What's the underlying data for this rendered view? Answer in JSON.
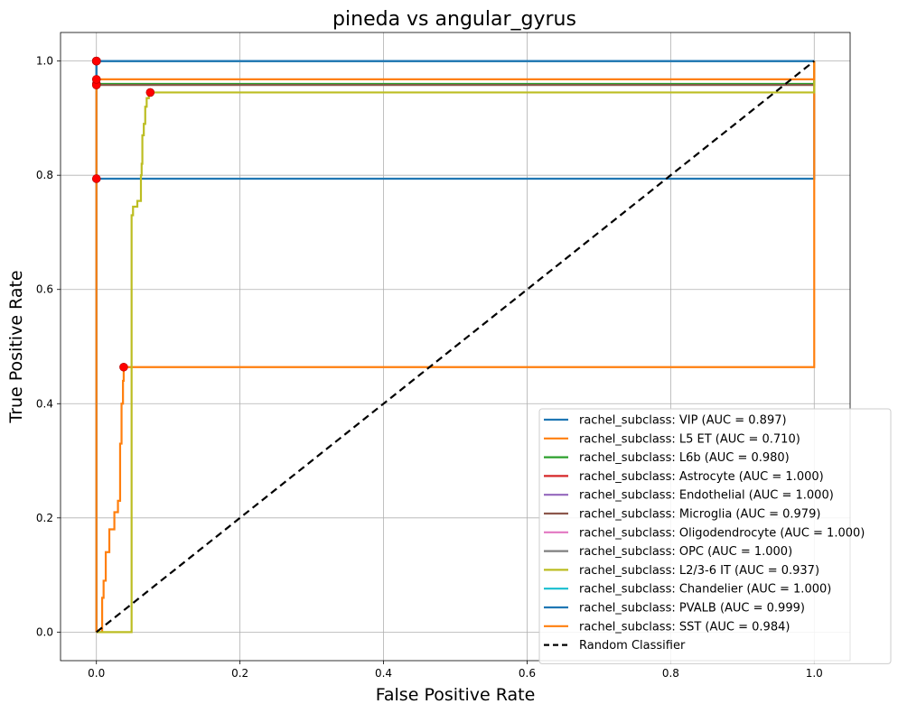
{
  "chart_data": {
    "type": "line",
    "title": "pineda vs angular_gyrus",
    "xlabel": "False Positive Rate",
    "ylabel": "True Positive Rate",
    "xlim": [
      -0.05,
      1.05
    ],
    "ylim": [
      -0.05,
      1.05
    ],
    "xticks": [
      "0.0",
      "0.2",
      "0.4",
      "0.6",
      "0.8",
      "1.0"
    ],
    "yticks": [
      "0.0",
      "0.2",
      "0.4",
      "0.6",
      "0.8",
      "1.0"
    ],
    "grid": true,
    "legend_placement": "lower-right",
    "series": [
      {
        "name": "rachel_subclass: VIP (AUC = 0.897)",
        "color": "#1f77b4",
        "points": [
          [
            0,
            0
          ],
          [
            0,
            0.794
          ],
          [
            1,
            0.794
          ],
          [
            1,
            1
          ]
        ],
        "marker": [
          0,
          0.794
        ]
      },
      {
        "name": "rachel_subclass: L5 ET (AUC = 0.710)",
        "color": "#ff7f0e",
        "points": [
          [
            0,
            0
          ],
          [
            0.008,
            0
          ],
          [
            0.008,
            0.06
          ],
          [
            0.01,
            0.06
          ],
          [
            0.01,
            0.09
          ],
          [
            0.013,
            0.09
          ],
          [
            0.013,
            0.14
          ],
          [
            0.018,
            0.14
          ],
          [
            0.018,
            0.18
          ],
          [
            0.025,
            0.18
          ],
          [
            0.025,
            0.21
          ],
          [
            0.03,
            0.21
          ],
          [
            0.03,
            0.23
          ],
          [
            0.033,
            0.23
          ],
          [
            0.033,
            0.33
          ],
          [
            0.035,
            0.33
          ],
          [
            0.035,
            0.4
          ],
          [
            0.037,
            0.4
          ],
          [
            0.037,
            0.44
          ],
          [
            0.038,
            0.44
          ],
          [
            0.038,
            0.464
          ],
          [
            1,
            0.464
          ],
          [
            1,
            1
          ]
        ],
        "marker": [
          0.038,
          0.464
        ]
      },
      {
        "name": "rachel_subclass: L6b (AUC = 0.980)",
        "color": "#2ca02c",
        "points": [
          [
            0,
            0
          ],
          [
            0,
            0.96
          ],
          [
            1,
            0.96
          ],
          [
            1,
            1
          ]
        ],
        "marker": [
          0,
          0.96
        ]
      },
      {
        "name": "rachel_subclass: Astrocyte (AUC = 1.000)",
        "color": "#d62728",
        "points": [
          [
            0,
            0
          ],
          [
            0,
            1
          ],
          [
            1,
            1
          ]
        ],
        "marker": [
          0,
          1
        ]
      },
      {
        "name": "rachel_subclass: Endothelial (AUC = 1.000)",
        "color": "#9467bd",
        "points": [
          [
            0,
            0
          ],
          [
            0,
            1
          ],
          [
            1,
            1
          ]
        ],
        "marker": [
          0,
          1
        ]
      },
      {
        "name": "rachel_subclass: Microglia (AUC = 0.979)",
        "color": "#8c564b",
        "points": [
          [
            0,
            0
          ],
          [
            0,
            0.958
          ],
          [
            1,
            0.958
          ],
          [
            1,
            1
          ]
        ],
        "marker": [
          0,
          0.958
        ]
      },
      {
        "name": "rachel_subclass: Oligodendrocyte (AUC = 1.000)",
        "color": "#e377c2",
        "points": [
          [
            0,
            0
          ],
          [
            0,
            1
          ],
          [
            1,
            1
          ]
        ],
        "marker": [
          0,
          1
        ]
      },
      {
        "name": "rachel_subclass: OPC (AUC = 1.000)",
        "color": "#7f7f7f",
        "points": [
          [
            0,
            0
          ],
          [
            0,
            1
          ],
          [
            1,
            1
          ]
        ],
        "marker": [
          0,
          1
        ]
      },
      {
        "name": "rachel_subclass: L2/3-6 IT (AUC = 0.937)",
        "color": "#bcbd22",
        "points": [
          [
            0,
            0
          ],
          [
            0.049,
            0
          ],
          [
            0.049,
            0.73
          ],
          [
            0.051,
            0.73
          ],
          [
            0.051,
            0.745
          ],
          [
            0.057,
            0.745
          ],
          [
            0.057,
            0.755
          ],
          [
            0.062,
            0.755
          ],
          [
            0.062,
            0.8
          ],
          [
            0.063,
            0.8
          ],
          [
            0.063,
            0.82
          ],
          [
            0.064,
            0.82
          ],
          [
            0.064,
            0.87
          ],
          [
            0.066,
            0.87
          ],
          [
            0.066,
            0.89
          ],
          [
            0.068,
            0.89
          ],
          [
            0.068,
            0.92
          ],
          [
            0.07,
            0.92
          ],
          [
            0.07,
            0.935
          ],
          [
            0.073,
            0.935
          ],
          [
            0.073,
            0.945
          ],
          [
            1,
            0.945
          ],
          [
            1,
            1
          ]
        ],
        "marker": [
          0.075,
          0.945
        ]
      },
      {
        "name": "rachel_subclass: Chandelier (AUC = 1.000)",
        "color": "#17becf",
        "points": [
          [
            0,
            0
          ],
          [
            0,
            1
          ],
          [
            1,
            1
          ]
        ],
        "marker": [
          0,
          1
        ]
      },
      {
        "name": "rachel_subclass: PVALB (AUC = 0.999)",
        "color": "#1f77b4",
        "points": [
          [
            0,
            0
          ],
          [
            0,
            1
          ],
          [
            1,
            1
          ]
        ],
        "marker": [
          0,
          1
        ]
      },
      {
        "name": "rachel_subclass: SST (AUC = 0.984)",
        "color": "#ff7f0e",
        "points": [
          [
            0,
            0
          ],
          [
            0,
            0.968
          ],
          [
            1,
            0.968
          ],
          [
            1,
            1
          ]
        ],
        "marker": [
          0,
          0.968
        ]
      }
    ],
    "reference_line": {
      "name": "Random Classifier",
      "color": "#000000",
      "style": "dashed",
      "points": [
        [
          0,
          0
        ],
        [
          1,
          1
        ]
      ]
    }
  }
}
